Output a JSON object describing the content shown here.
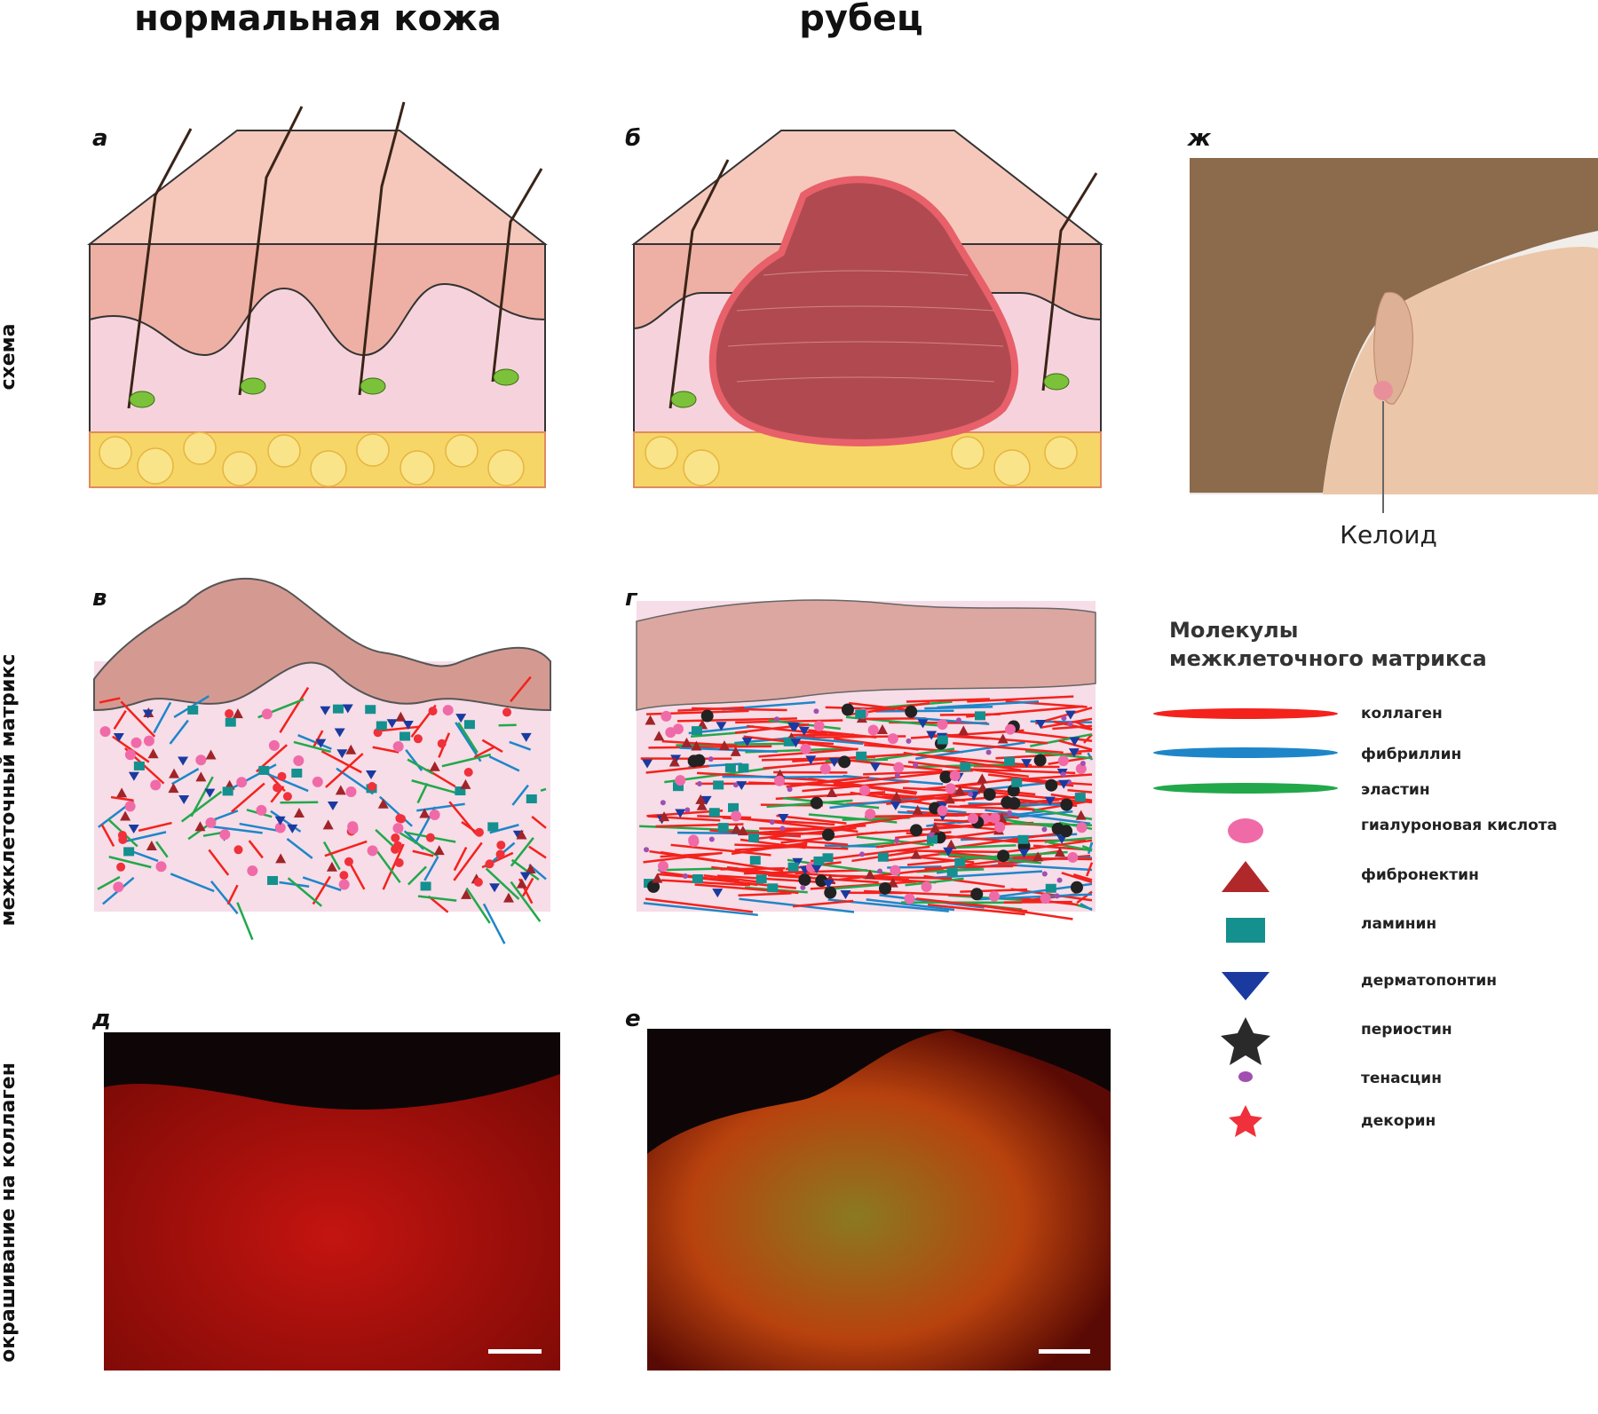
{
  "column_titles": [
    "нормальная кожа",
    "рубец"
  ],
  "row_labels": [
    "схема",
    "межклеточный матрикс",
    "окрашивание на коллаген"
  ],
  "panels": [
    "а",
    "б",
    "ж",
    "в",
    "г",
    "д",
    "е"
  ],
  "keloid_label": "Келоид",
  "legend": {
    "title_lines": [
      "Молекулы",
      "межклеточного матрикса"
    ],
    "items": [
      "коллаген",
      "фибриллин",
      "эластин",
      "гиалуроновая кислота",
      "фибронектин",
      "ламинин",
      "дерматопонтин",
      "периостин",
      "тенасцин",
      "декорин"
    ]
  }
}
